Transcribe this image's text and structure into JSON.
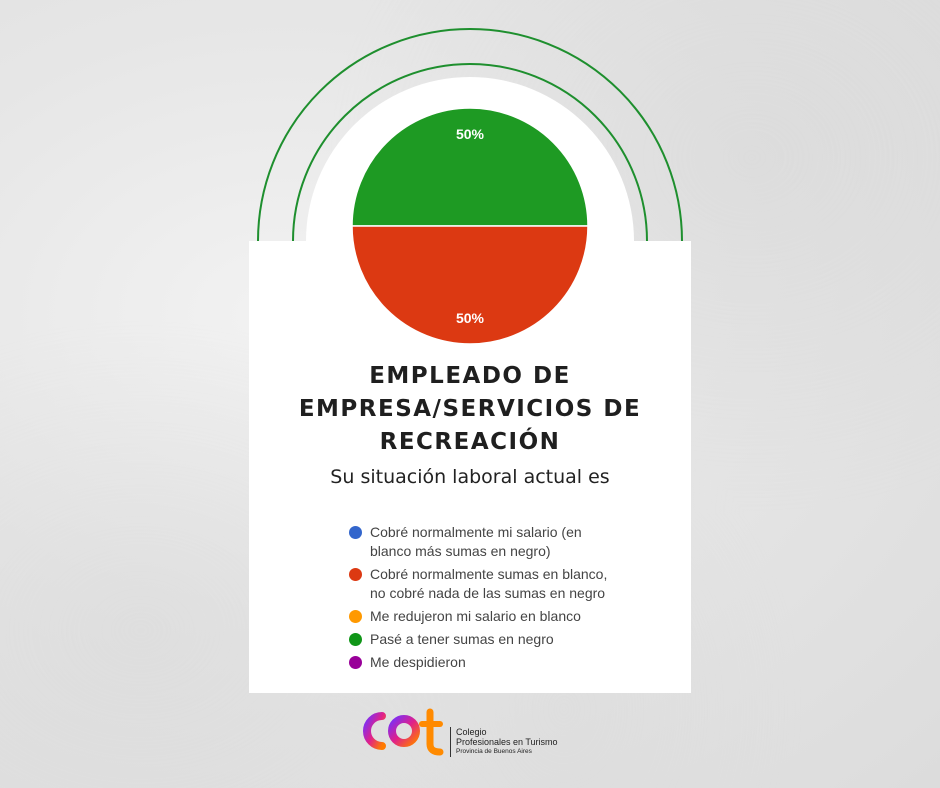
{
  "title": "EMPLEADO DE EMPRESA/SERVICIOS DE RECREACIÓN",
  "subtitle": "Su situación laboral actual es",
  "colors": {
    "green_ring": "#1e8f2e",
    "card": "#ffffff"
  },
  "chart_data": {
    "type": "pie",
    "slices": [
      {
        "label": "Pasé a tener sumas en negro",
        "value": 50,
        "display": "50%",
        "color": "#1e9a23"
      },
      {
        "label": "Cobré normalmente sumas en blanco, no cobré nada de las sumas en negro",
        "value": 50,
        "display": "50%",
        "color": "#dc3912"
      }
    ],
    "legend": [
      {
        "label_line1": "Cobré normalmente mi salario (en",
        "label_line2": "blanco más sumas en negro)",
        "color": "#3366cc"
      },
      {
        "label_line1": "Cobré normalmente sumas en blanco,",
        "label_line2": "no cobré nada de las sumas en negro",
        "color": "#dc3912"
      },
      {
        "label_line1": "Me redujeron mi salario en blanco",
        "label_line2": "",
        "color": "#ff9900"
      },
      {
        "label_line1": "Pasé a tener sumas en negro",
        "label_line2": "",
        "color": "#109618"
      },
      {
        "label_line1": "Me despidieron",
        "label_line2": "",
        "color": "#990099"
      }
    ],
    "legend_position": "bottom"
  },
  "logo": {
    "line1": "Colegio",
    "line2": "Profesionales en Turismo",
    "line3": "Provincia de Buenos Aires"
  }
}
